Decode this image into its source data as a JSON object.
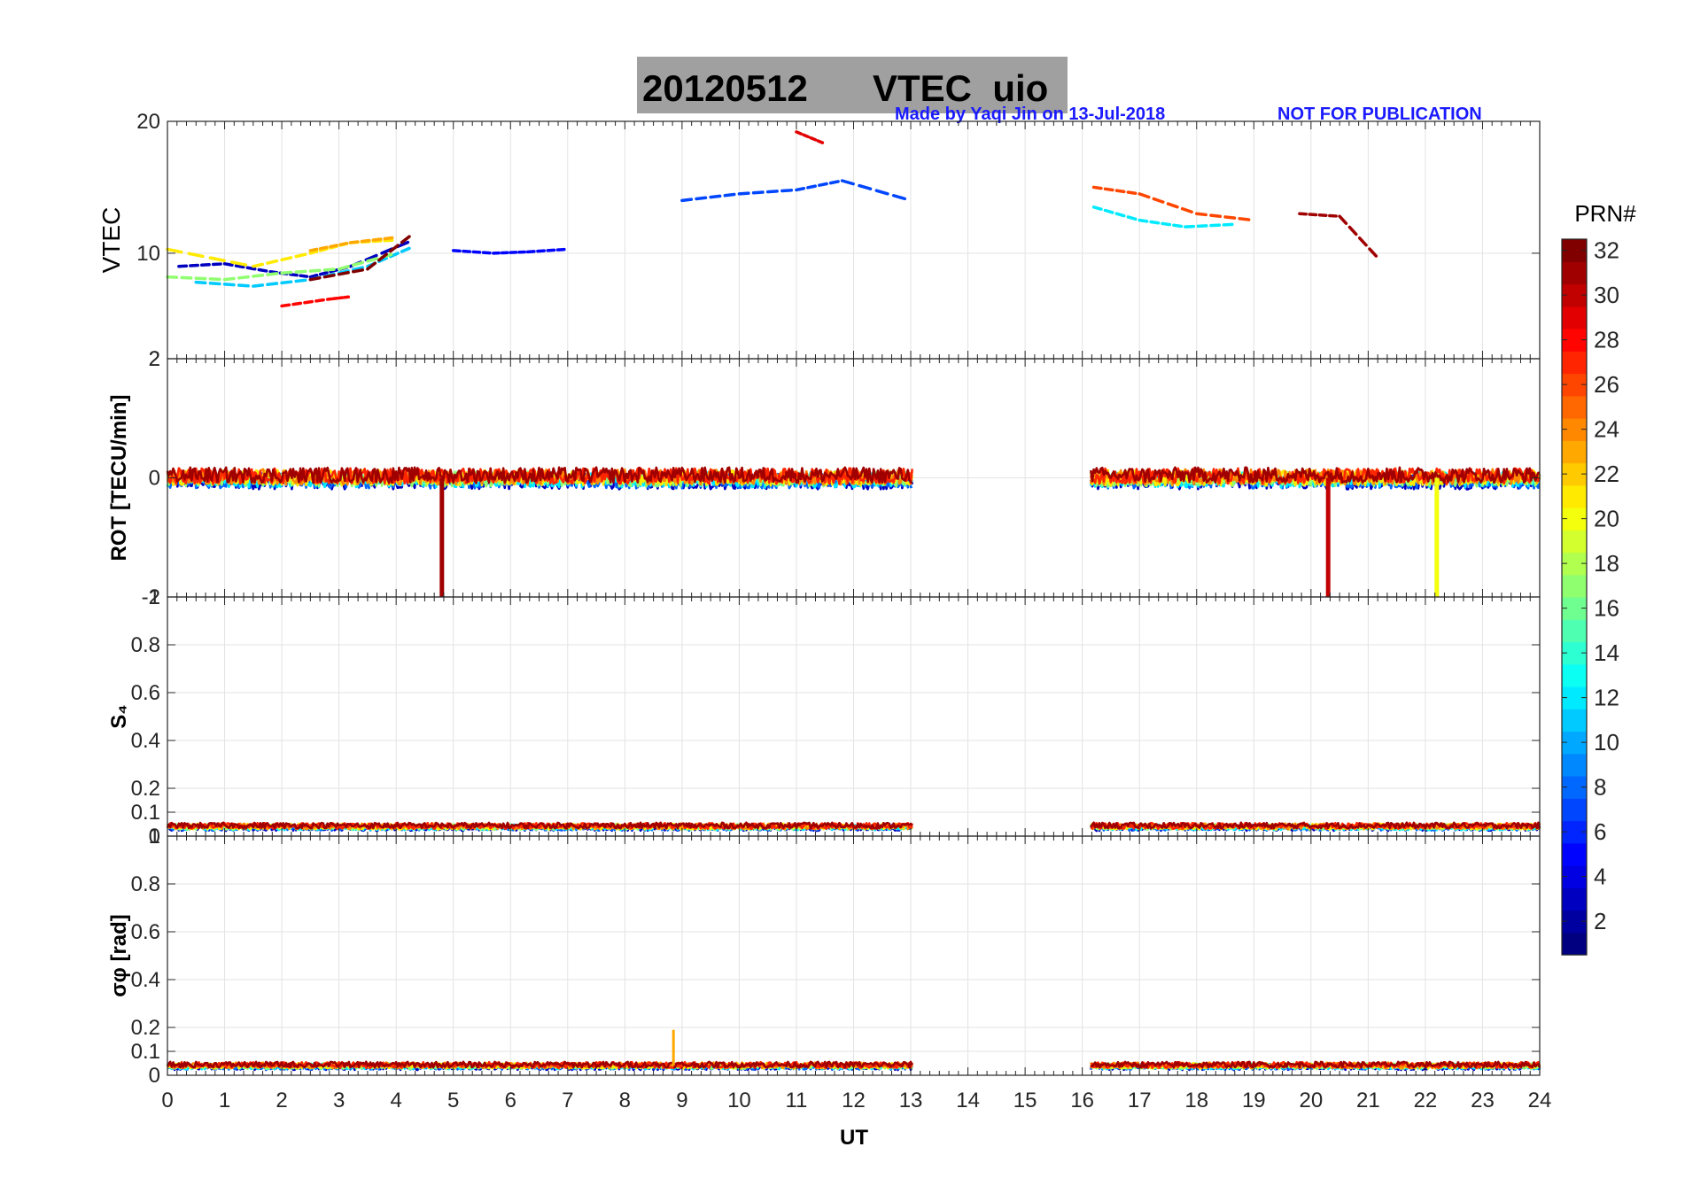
{
  "title": {
    "date": "20120512",
    "text": "VTEC  uio",
    "box_color": "#a0a0a0"
  },
  "credit": {
    "made_by": "Made by Yaqi Jin on 13-Jul-2018",
    "notice": "NOT FOR PUBLICATION",
    "color": "#1a1aff"
  },
  "chart_data": [
    {
      "type": "line",
      "panel": "vtec",
      "ylabel": "VTEC",
      "ylim": [
        2,
        20
      ],
      "yticks": [
        "2",
        "10",
        "20"
      ],
      "ytick_values": [
        2,
        10,
        20
      ],
      "xlim": [
        0,
        24
      ],
      "grid": true,
      "data_gaps_ut": [
        [
          13.1,
          16.2
        ]
      ],
      "series": [
        {
          "prn": 3,
          "x": [
            0.2,
            1.0,
            1.8,
            2.5,
            3.2,
            4.3
          ],
          "values": [
            9.0,
            9.2,
            8.6,
            8.2,
            9.0,
            11.0
          ]
        },
        {
          "prn": 5,
          "x": [
            5.0,
            5.7,
            6.3,
            7.0
          ],
          "values": [
            10.2,
            10.0,
            10.1,
            10.3
          ]
        },
        {
          "prn": 7,
          "x": [
            9.0,
            10.0,
            11.0,
            11.8,
            13.0
          ],
          "values": [
            14.0,
            14.5,
            14.8,
            15.5,
            14.0
          ]
        },
        {
          "prn": 11,
          "x": [
            0.5,
            1.5,
            2.5,
            3.5,
            4.3
          ],
          "values": [
            7.8,
            7.5,
            8.0,
            9.0,
            10.5
          ]
        },
        {
          "prn": 12,
          "x": [
            16.2,
            17.0,
            17.8,
            18.7
          ],
          "values": [
            13.5,
            12.5,
            12.0,
            12.2
          ]
        },
        {
          "prn": 17,
          "x": [
            0.0,
            1.0,
            2.0,
            3.0,
            4.0
          ],
          "values": [
            8.2,
            8.0,
            8.5,
            8.8,
            10.0
          ]
        },
        {
          "prn": 21,
          "x": [
            0.0,
            1.5,
            2.5,
            3.2,
            4.0
          ],
          "values": [
            10.3,
            9.0,
            10.0,
            10.8,
            11.0
          ]
        },
        {
          "prn": 23,
          "x": [
            2.5,
            3.2,
            4.0
          ],
          "values": [
            10.2,
            10.8,
            11.2
          ]
        },
        {
          "prn": 26,
          "x": [
            16.2,
            17.0,
            18.0,
            19.0
          ],
          "values": [
            15.0,
            14.5,
            13.0,
            12.5
          ]
        },
        {
          "prn": 28,
          "x": [
            2.0,
            2.8,
            3.2
          ],
          "values": [
            6.0,
            6.5,
            6.7
          ]
        },
        {
          "prn": 29,
          "x": [
            11.0,
            11.5
          ],
          "values": [
            19.2,
            18.3
          ]
        },
        {
          "prn": 31,
          "x": [
            19.8,
            20.5,
            21.2
          ],
          "values": [
            13.0,
            12.8,
            9.5
          ]
        },
        {
          "prn": 32,
          "x": [
            2.5,
            3.5,
            4.3
          ],
          "values": [
            8.0,
            8.8,
            11.5
          ]
        }
      ]
    },
    {
      "type": "line",
      "panel": "rot",
      "ylabel": "ROT [TECU/min]",
      "ylim": [
        -2,
        2
      ],
      "yticks": [
        "-2",
        "0",
        "2"
      ],
      "ytick_values": [
        -2,
        0,
        2
      ],
      "xlim": [
        0,
        24
      ],
      "grid": true,
      "data_gaps_ut": [
        [
          13.05,
          16.15
        ]
      ],
      "spikes": [
        {
          "prn": 31,
          "x": 4.8,
          "value": -2.0
        },
        {
          "prn": 30,
          "x": 20.3,
          "value": -2.0
        },
        {
          "prn": 20,
          "x": 22.2,
          "value": -2.0
        }
      ],
      "series": [
        {
          "prn": 3,
          "x": [
            0.0,
            24.0
          ],
          "values": [
            0.0,
            0.0
          ]
        }
      ]
    },
    {
      "type": "line",
      "panel": "s4",
      "ylabel": "S₄",
      "ylim": [
        0,
        1
      ],
      "yticks": [
        "0",
        "0.1",
        "0.2",
        "0.4",
        "0.6",
        "0.8",
        "1"
      ],
      "ytick_values": [
        0,
        0.1,
        0.2,
        0.4,
        0.6,
        0.8,
        1.0
      ],
      "xlim": [
        0,
        24
      ],
      "grid": true,
      "data_gaps_ut": [
        [
          13.05,
          16.15
        ]
      ],
      "series": [
        {
          "prn": 3,
          "x": [
            0.0,
            24.0
          ],
          "values": [
            0.04,
            0.04
          ]
        }
      ]
    },
    {
      "type": "line",
      "panel": "sigma_phi",
      "ylabel": "σφ [rad]",
      "ylim": [
        0,
        1
      ],
      "yticks": [
        "0",
        "0.1",
        "0.2",
        "0.4",
        "0.6",
        "0.8",
        "1"
      ],
      "ytick_values": [
        0,
        0.1,
        0.2,
        0.4,
        0.6,
        0.8,
        1.0
      ],
      "xlabel": "UT",
      "xticks": [
        "0",
        "1",
        "2",
        "3",
        "4",
        "5",
        "6",
        "7",
        "8",
        "9",
        "10",
        "11",
        "12",
        "13",
        "14",
        "15",
        "16",
        "17",
        "18",
        "19",
        "20",
        "21",
        "22",
        "23",
        "24"
      ],
      "xlim": [
        0,
        24
      ],
      "grid": true,
      "data_gaps_ut": [
        [
          13.05,
          16.15
        ]
      ],
      "spikes": [
        {
          "prn": 23,
          "x": 8.85,
          "value": 0.19
        }
      ],
      "series": [
        {
          "prn": 3,
          "x": [
            0.0,
            24.0
          ],
          "values": [
            0.04,
            0.04
          ]
        }
      ]
    }
  ],
  "colorbar": {
    "label": "PRN#",
    "ticks": [
      "2",
      "4",
      "6",
      "8",
      "10",
      "12",
      "14",
      "16",
      "18",
      "20",
      "22",
      "24",
      "26",
      "28",
      "30",
      "32"
    ],
    "tick_values": [
      2,
      4,
      6,
      8,
      10,
      12,
      14,
      16,
      18,
      20,
      22,
      24,
      26,
      28,
      30,
      32
    ],
    "range": [
      1,
      32
    ],
    "colormap": "jet"
  }
}
